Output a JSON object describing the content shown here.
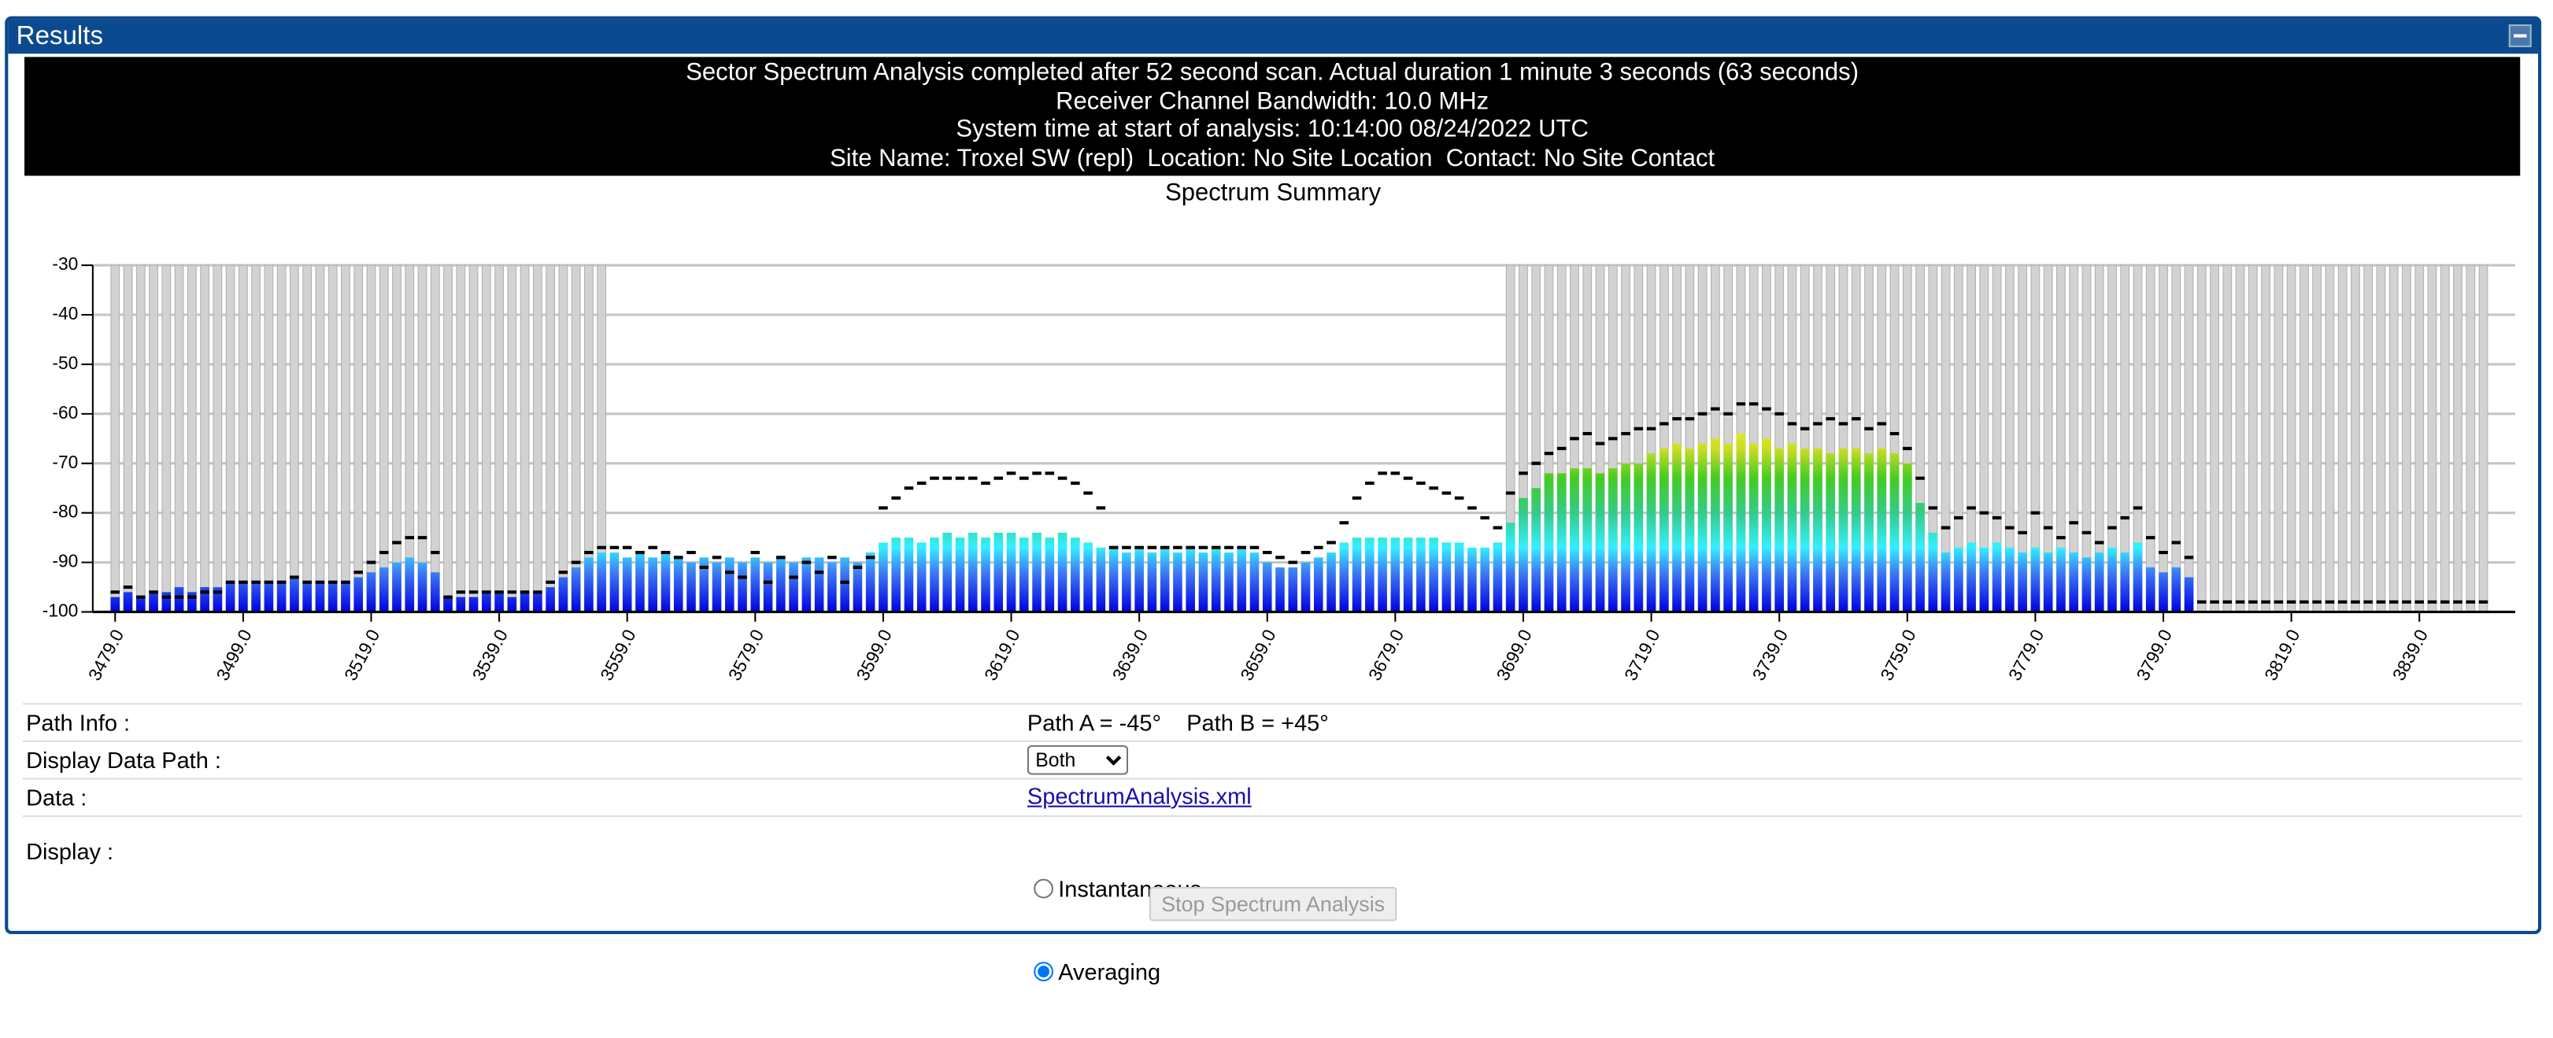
{
  "panel_title": "Results",
  "header_lines": [
    "Sector Spectrum Analysis completed after 52 second scan. Actual duration 1 minute 3 seconds (63 seconds)",
    "Receiver Channel Bandwidth: 10.0 MHz",
    "System time at start of analysis: 10:14:00 08/24/2022 UTC",
    "Site Name: Troxel SW (repl)  Location: No Site Location  Contact: No Site Contact"
  ],
  "chart_data": {
    "type": "bar",
    "title": "Spectrum Summary",
    "x": [
      3479,
      3481,
      3483,
      3485,
      3487,
      3489,
      3491,
      3493,
      3495,
      3497,
      3499,
      3501,
      3503,
      3505,
      3507,
      3509,
      3511,
      3513,
      3515,
      3517,
      3519,
      3521,
      3523,
      3525,
      3527,
      3529,
      3531,
      3533,
      3535,
      3537,
      3539,
      3541,
      3543,
      3545,
      3547,
      3549,
      3551,
      3553,
      3555,
      3557,
      3559,
      3561,
      3563,
      3565,
      3567,
      3569,
      3571,
      3573,
      3575,
      3577,
      3579,
      3581,
      3583,
      3585,
      3587,
      3589,
      3591,
      3593,
      3595,
      3597,
      3599,
      3601,
      3603,
      3605,
      3607,
      3609,
      3611,
      3613,
      3615,
      3617,
      3619,
      3621,
      3623,
      3625,
      3627,
      3629,
      3631,
      3633,
      3635,
      3637,
      3639,
      3641,
      3643,
      3645,
      3647,
      3649,
      3651,
      3653,
      3655,
      3657,
      3659,
      3661,
      3663,
      3665,
      3667,
      3669,
      3671,
      3673,
      3675,
      3677,
      3679,
      3681,
      3683,
      3685,
      3687,
      3689,
      3691,
      3693,
      3695,
      3697,
      3699,
      3701,
      3703,
      3705,
      3707,
      3709,
      3711,
      3713,
      3715,
      3717,
      3719,
      3721,
      3723,
      3725,
      3727,
      3729,
      3731,
      3733,
      3735,
      3737,
      3739,
      3741,
      3743,
      3745,
      3747,
      3749,
      3751,
      3753,
      3755,
      3757,
      3759,
      3761,
      3763,
      3765,
      3767,
      3769,
      3771,
      3773,
      3775,
      3777,
      3779,
      3781,
      3783,
      3785,
      3787,
      3789,
      3791,
      3793,
      3795,
      3797,
      3799,
      3801,
      3803,
      3805,
      3807,
      3809,
      3811,
      3813,
      3815,
      3817,
      3819,
      3821,
      3823,
      3825,
      3827,
      3829,
      3831,
      3833,
      3835,
      3837,
      3839,
      3841,
      3843,
      3845,
      3847,
      3849
    ],
    "series": [
      {
        "style": "bar",
        "values": [
          -97,
          -96,
          -97,
          -96,
          -96,
          -95,
          -96,
          -95,
          -95,
          -94,
          -94,
          -94,
          -94,
          -94,
          -93,
          -94,
          -94,
          -94,
          -94,
          -93,
          -92,
          -91,
          -90,
          -89,
          -90,
          -92,
          -97,
          -97,
          -97,
          -96,
          -96,
          -97,
          -96,
          -96,
          -95,
          -93,
          -91,
          -89,
          -88,
          -88,
          -89,
          -88,
          -89,
          -88,
          -89,
          -90,
          -89,
          -90,
          -89,
          -90,
          -89,
          -90,
          -89,
          -90,
          -89,
          -89,
          -90,
          -89,
          -90,
          -88,
          -86,
          -85,
          -85,
          -86,
          -85,
          -84,
          -85,
          -84,
          -85,
          -84,
          -84,
          -85,
          -84,
          -85,
          -84,
          -85,
          -86,
          -87,
          -87,
          -88,
          -87,
          -88,
          -87,
          -88,
          -87,
          -88,
          -87,
          -88,
          -87,
          -88,
          -90,
          -91,
          -91,
          -90,
          -89,
          -88,
          -86,
          -85,
          -85,
          -85,
          -85,
          -85,
          -85,
          -85,
          -86,
          -86,
          -87,
          -87,
          -86,
          -82,
          -77,
          -75,
          -72,
          -72,
          -71,
          -71,
          -72,
          -71,
          -70,
          -70,
          -68,
          -67,
          -66,
          -67,
          -66,
          -65,
          -66,
          -64,
          -66,
          -65,
          -67,
          -66,
          -67,
          -67,
          -68,
          -67,
          -67,
          -68,
          -67,
          -68,
          -70,
          -78,
          -84,
          -88,
          -87,
          -86,
          -87,
          -86,
          -87,
          -88,
          -87,
          -88,
          -87,
          -88,
          -89,
          -88,
          -87,
          -88,
          -86,
          -91,
          -92,
          -91,
          -93,
          -100,
          -100,
          -100,
          -100,
          -100,
          -100,
          -100,
          -100,
          -100,
          -100,
          -100,
          -100,
          -100,
          -100,
          -100,
          -100,
          -100,
          -100,
          -100,
          -100,
          -100,
          -100,
          -100
        ]
      },
      {
        "style": "dash",
        "color": "#000000",
        "values": [
          -96,
          -95,
          -97,
          -96,
          -97,
          -97,
          -97,
          -96,
          -96,
          -94,
          -94,
          -94,
          -94,
          -94,
          -93,
          -94,
          -94,
          -94,
          -94,
          -92,
          -90,
          -88,
          -86,
          -85,
          -85,
          -88,
          -97,
          -96,
          -96,
          -96,
          -96,
          -96,
          -96,
          -96,
          -94,
          -92,
          -90,
          -88,
          -87,
          -87,
          -87,
          -88,
          -87,
          -88,
          -89,
          -88,
          -91,
          -89,
          -92,
          -93,
          -88,
          -94,
          -89,
          -93,
          -90,
          -92,
          -89,
          -94,
          -91,
          -89,
          -79,
          -77,
          -75,
          -74,
          -73,
          -73,
          -73,
          -73,
          -74,
          -73,
          -72,
          -73,
          -72,
          -72,
          -73,
          -74,
          -76,
          -79,
          -87,
          -87,
          -87,
          -87,
          -87,
          -87,
          -87,
          -87,
          -87,
          -87,
          -87,
          -87,
          -88,
          -89,
          -90,
          -88,
          -87,
          -86,
          -82,
          -77,
          -74,
          -72,
          -72,
          -73,
          -74,
          -75,
          -76,
          -77,
          -79,
          -81,
          -83,
          -76,
          -72,
          -70,
          -68,
          -67,
          -65,
          -64,
          -66,
          -65,
          -64,
          -63,
          -63,
          -62,
          -61,
          -61,
          -60,
          -59,
          -60,
          -58,
          -58,
          -59,
          -60,
          -62,
          -63,
          -62,
          -61,
          -62,
          -61,
          -63,
          -62,
          -64,
          -67,
          -73,
          -79,
          -83,
          -81,
          -79,
          -80,
          -81,
          -83,
          -84,
          -80,
          -83,
          -85,
          -82,
          -84,
          -86,
          -83,
          -81,
          -79,
          -85,
          -88,
          -86,
          -89,
          -98,
          -98,
          -98,
          -98,
          -98,
          -98,
          -98,
          -98,
          -98,
          -98,
          -98,
          -98,
          -98,
          -98,
          -98,
          -98,
          -98,
          -98,
          -98,
          -98,
          -98,
          -98,
          -98
        ]
      }
    ],
    "color_scale": [
      {
        "value": -100,
        "color": "#0000e0"
      },
      {
        "value": -92,
        "color": "#3d7cf5"
      },
      {
        "value": -87,
        "color": "#33f0ff"
      },
      {
        "value": -80,
        "color": "#33cc88"
      },
      {
        "value": -73,
        "color": "#44cc22"
      },
      {
        "value": -67,
        "color": "#ccdd22"
      },
      {
        "value": -62,
        "color": "#eeee22"
      }
    ],
    "blocked_ranges": [
      [
        3479,
        3555
      ],
      [
        3697,
        3849
      ]
    ],
    "blocked_color": "#d2d2d2",
    "xlim": [
      3475,
      3855
    ],
    "ylim": [
      -100,
      -30
    ],
    "xticks": [
      {
        "value": 3479,
        "label": "3479.0"
      },
      {
        "value": 3499,
        "label": "3499.0"
      },
      {
        "value": 3519,
        "label": "3519.0"
      },
      {
        "value": 3539,
        "label": "3539.0"
      },
      {
        "value": 3559,
        "label": "3559.0"
      },
      {
        "value": 3579,
        "label": "3579.0"
      },
      {
        "value": 3599,
        "label": "3599.0"
      },
      {
        "value": 3619,
        "label": "3619.0"
      },
      {
        "value": 3639,
        "label": "3639.0"
      },
      {
        "value": 3659,
        "label": "3659.0"
      },
      {
        "value": 3679,
        "label": "3679.0"
      },
      {
        "value": 3699,
        "label": "3699.0"
      },
      {
        "value": 3719,
        "label": "3719.0"
      },
      {
        "value": 3739,
        "label": "3739.0"
      },
      {
        "value": 3759,
        "label": "3759.0"
      },
      {
        "value": 3779,
        "label": "3779.0"
      },
      {
        "value": 3799,
        "label": "3799.0"
      },
      {
        "value": 3819,
        "label": "3819.0"
      },
      {
        "value": 3839,
        "label": "3839.0"
      }
    ],
    "yticks": [
      -30,
      -40,
      -50,
      -60,
      -70,
      -80,
      -90,
      -100
    ],
    "grid": true
  },
  "form": {
    "path_info": {
      "label": "Path Info :",
      "values": [
        "Path A = -45°",
        "Path B = +45°"
      ]
    },
    "display_data_path": {
      "label": "Display Data Path :",
      "selected": "Both"
    },
    "data": {
      "label": "Data :",
      "link": "SpectrumAnalysis.xml"
    },
    "display": {
      "label": "Display :",
      "options": [
        "Instantaneous",
        "Averaging"
      ]
    },
    "button": "Stop Spectrum Analysis"
  }
}
